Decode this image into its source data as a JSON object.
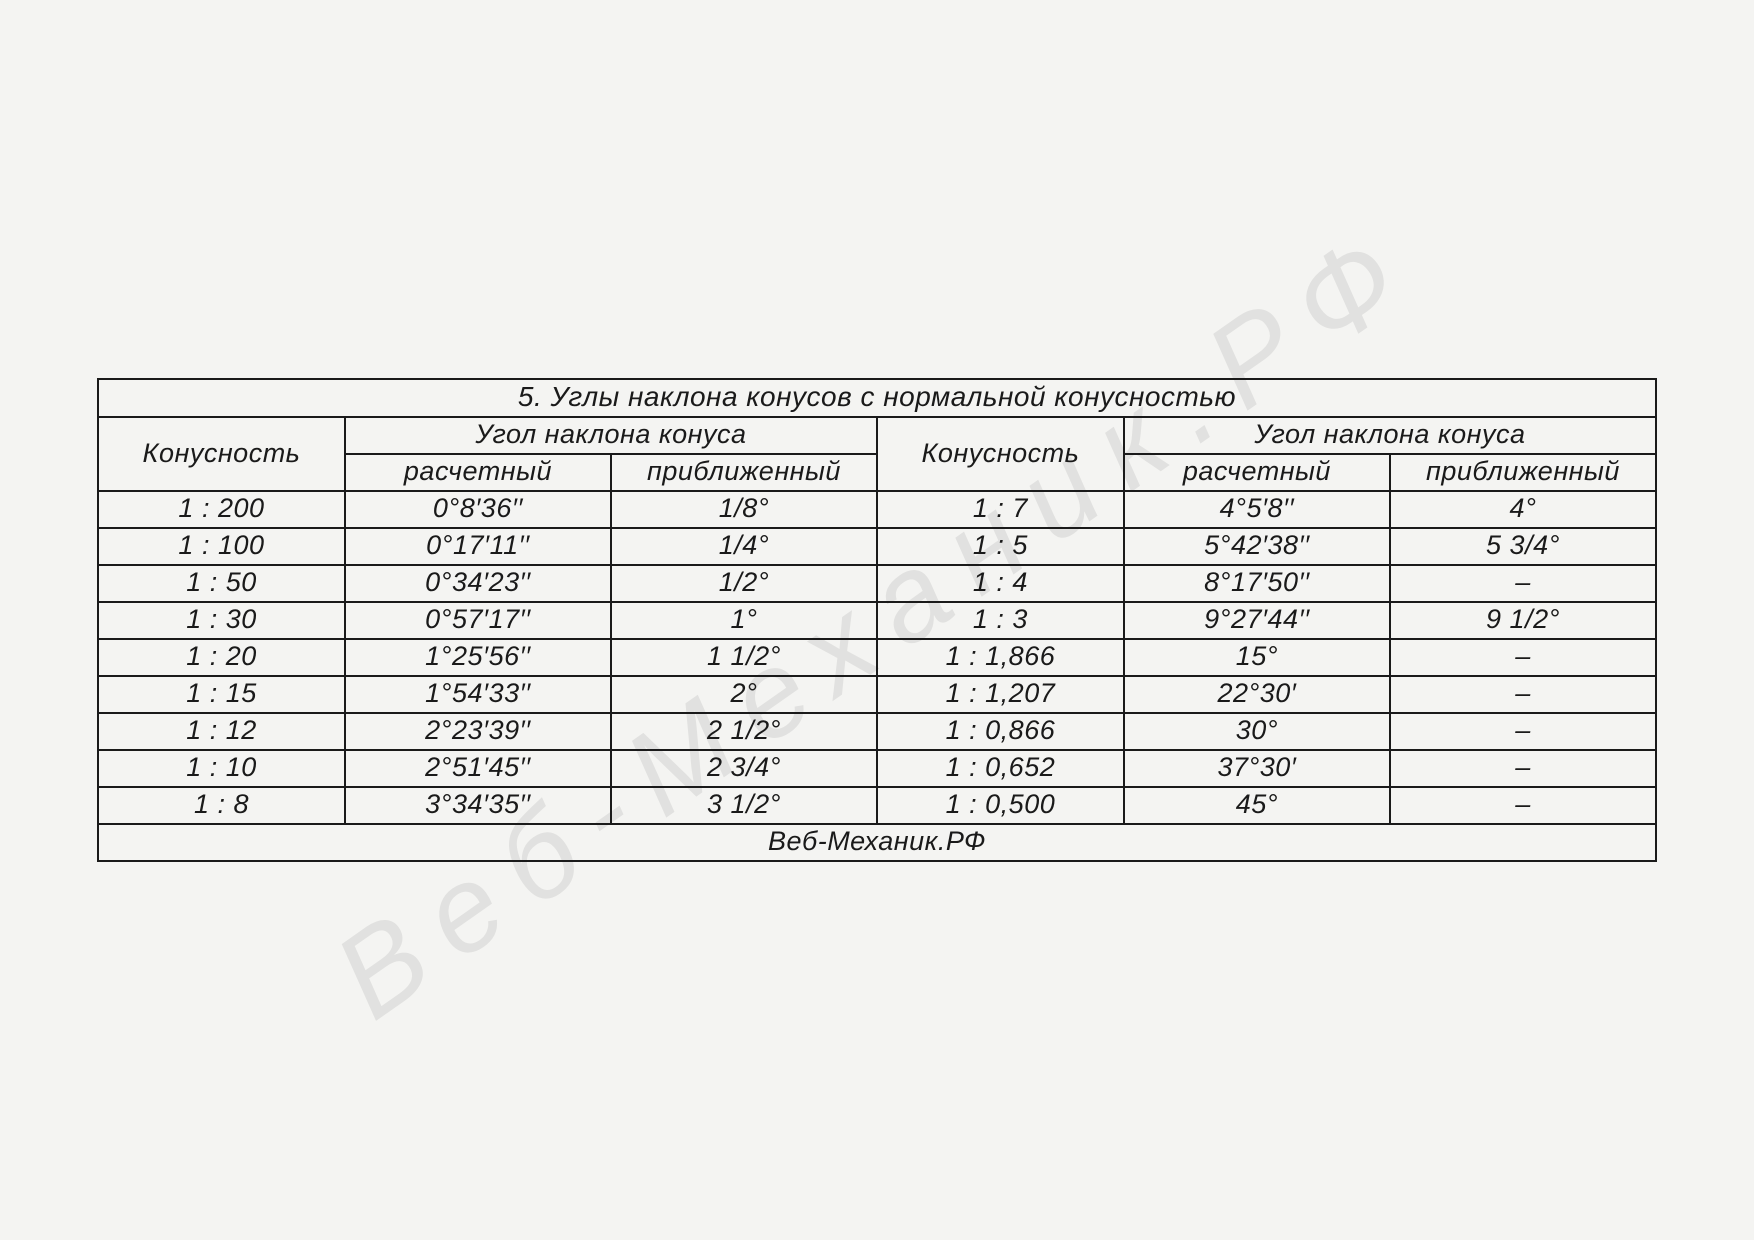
{
  "type": "table",
  "background_color": "#f4f4f2",
  "border_color": "#1a1a1a",
  "text_color": "#1a1a1a",
  "font_style": "italic",
  "font_size_pt": 20,
  "title": "5. Углы наклона конусов с нормальной конусностью",
  "footer": "Веб-Механик.РФ",
  "watermark": "Веб-Механик.РФ",
  "watermark_color": "rgba(120,120,120,0.15)",
  "header": {
    "konus": "Конусность",
    "angle_group": "Угол наклона конуса",
    "calc": "расчетный",
    "approx": "приближенный"
  },
  "rows": [
    {
      "k1": "1 : 200",
      "c1": "0°8′36′′",
      "a1": "1/8°",
      "k2": "1 : 7",
      "c2": "4°5′8′′",
      "a2": "4°"
    },
    {
      "k1": "1 : 100",
      "c1": "0°17′11′′",
      "a1": "1/4°",
      "k2": "1 : 5",
      "c2": "5°42′38′′",
      "a2": "5 3/4°"
    },
    {
      "k1": "1 : 50",
      "c1": "0°34′23′′",
      "a1": "1/2°",
      "k2": "1 : 4",
      "c2": "8°17′50′′",
      "a2": "–"
    },
    {
      "k1": "1 : 30",
      "c1": "0°57′17′′",
      "a1": "1°",
      "k2": "1 : 3",
      "c2": "9°27′44′′",
      "a2": "9 1/2°"
    },
    {
      "k1": "1 : 20",
      "c1": "1°25′56′′",
      "a1": "1 1/2°",
      "k2": "1 : 1,866",
      "c2": "15°",
      "a2": "–"
    },
    {
      "k1": "1 : 15",
      "c1": "1°54′33′′",
      "a1": "2°",
      "k2": "1 : 1,207",
      "c2": "22°30′",
      "a2": "–"
    },
    {
      "k1": "1 : 12",
      "c1": "2°23′39′′",
      "a1": "2 1/2°",
      "k2": "1 : 0,866",
      "c2": "30°",
      "a2": "–"
    },
    {
      "k1": "1 : 10",
      "c1": "2°51′45′′",
      "a1": "2 3/4°",
      "k2": "1 : 0,652",
      "c2": "37°30′",
      "a2": "–"
    },
    {
      "k1": "1 : 8",
      "c1": "3°34′35′′",
      "a1": "3 1/2°",
      "k2": "1 : 0,500",
      "c2": "45°",
      "a2": "–"
    }
  ]
}
